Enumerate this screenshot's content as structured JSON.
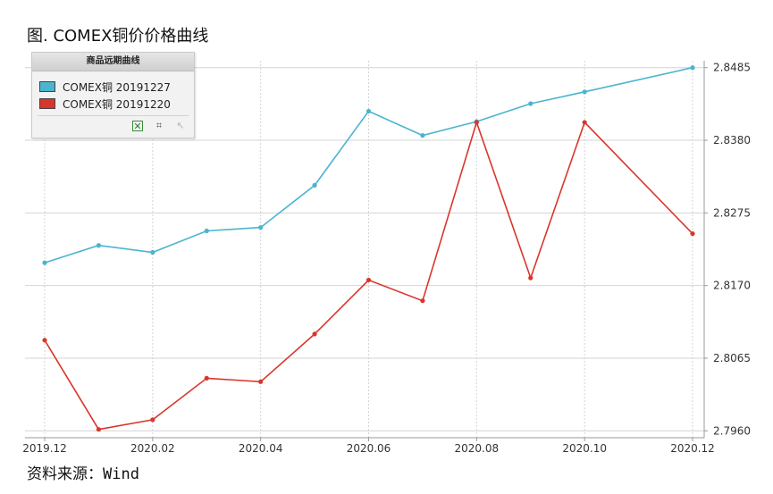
{
  "figure_title": "图. COMEX铜价价格曲线",
  "source": "资料来源：Wind",
  "legend": {
    "header": "商品远期曲线",
    "items": [
      {
        "label": "COMEX铜 20191227",
        "color": "#4bb4cf"
      },
      {
        "label": "COMEX铜 20191220",
        "color": "#d9362b"
      }
    ],
    "tools": [
      "export-excel-icon",
      "crop-icon",
      "reset-icon"
    ]
  },
  "chart_data": {
    "type": "line",
    "x": [
      "2019.12",
      "2020.01",
      "2020.02",
      "2020.03",
      "2020.04",
      "2020.05",
      "2020.06",
      "2020.07",
      "2020.08",
      "2020.09",
      "2020.10",
      "2020.12"
    ],
    "x_ticks": [
      "2019.12",
      "2020.02",
      "2020.04",
      "2020.06",
      "2020.08",
      "2020.10",
      "2020.12"
    ],
    "y_ticks": [
      "2.8485",
      "2.8380",
      "2.8275",
      "2.8170",
      "2.8065",
      "2.7960"
    ],
    "ylim": [
      2.795,
      2.8495
    ],
    "y_axis_position": "right",
    "grid": true,
    "legend_position": "top-left",
    "series": [
      {
        "name": "COMEX铜 20191227",
        "color": "#4bb4cf",
        "values": [
          2.8203,
          2.8228,
          2.8218,
          2.8249,
          2.8254,
          2.8315,
          2.8422,
          2.8387,
          2.8407,
          2.8433,
          2.845,
          2.8485
        ]
      },
      {
        "name": "COMEX铜 20191220",
        "color": "#d9362b",
        "values": [
          2.8091,
          2.7962,
          2.7976,
          2.8036,
          2.8031,
          2.81,
          2.8178,
          2.8148,
          2.8406,
          2.8181,
          2.8406,
          2.8245
        ]
      }
    ]
  }
}
